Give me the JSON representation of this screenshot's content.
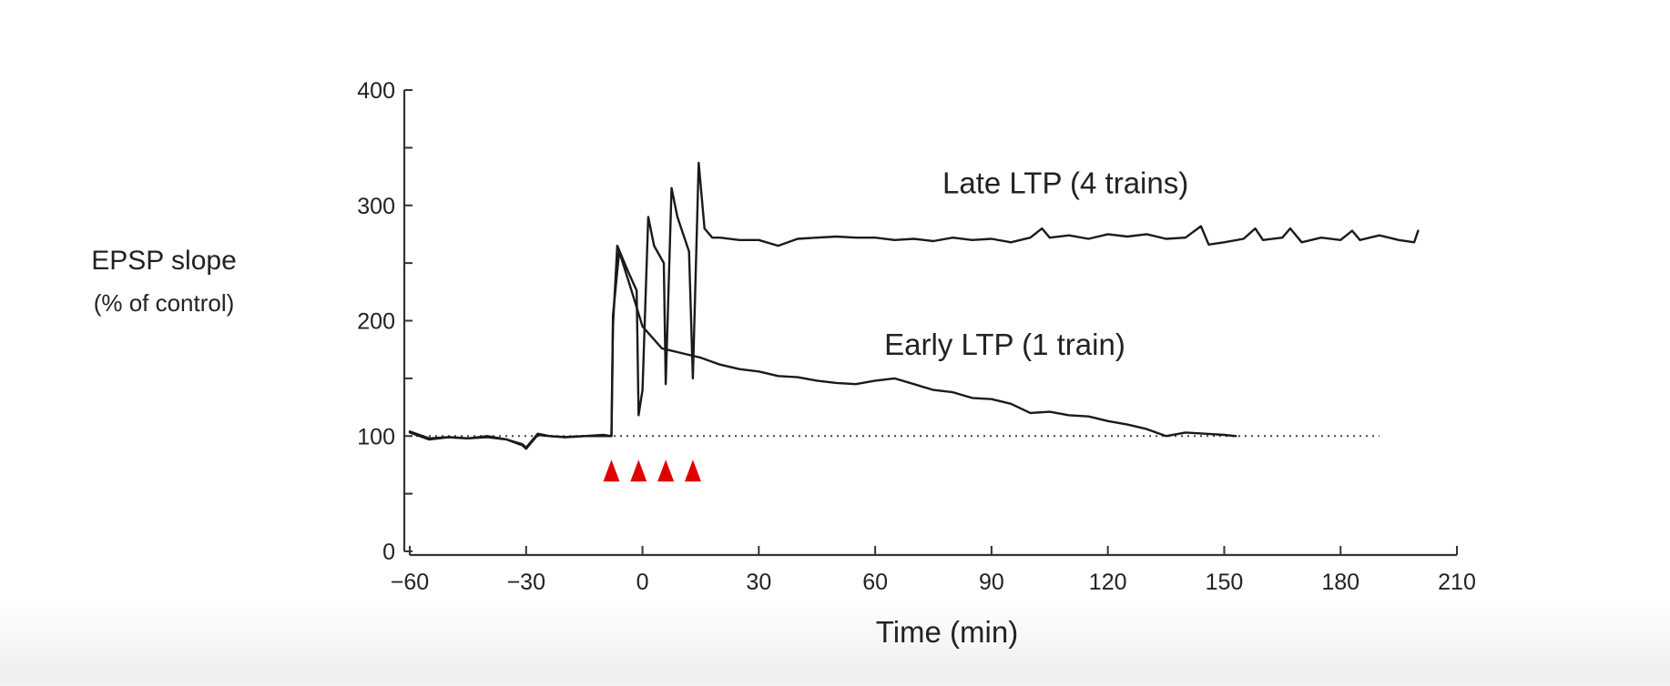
{
  "chart_data": {
    "type": "line",
    "title": "",
    "xlabel": "Time (min)",
    "ylabel": "EPSP slope",
    "ylabel_sub": "(% of control)",
    "xlim": [
      -60,
      210
    ],
    "ylim": [
      0,
      400
    ],
    "x_ticks": [
      -60,
      -30,
      0,
      30,
      60,
      90,
      120,
      150,
      180,
      210
    ],
    "x_tick_labels": [
      "−60",
      "−30",
      "0",
      "30",
      "60",
      "90",
      "120",
      "150",
      "180",
      "210"
    ],
    "y_ticks": [
      0,
      50,
      100,
      150,
      200,
      250,
      300,
      350,
      400
    ],
    "y_tick_labels": [
      "0",
      "",
      "100",
      "",
      "200",
      "",
      "300",
      "",
      "400"
    ],
    "baseline": {
      "y": 100,
      "x_range": [
        -60,
        190
      ],
      "style": "dotted"
    },
    "stimulus_markers": {
      "x": [
        -8,
        -1,
        6,
        13
      ],
      "color": "#e00000"
    },
    "grid": false,
    "legend": "none",
    "series": [
      {
        "name": "Late LTP (4 trains)",
        "color": "#1a1a1a",
        "x": [
          -60,
          -55,
          -50,
          -45,
          -40,
          -35,
          -31,
          -30,
          -27,
          -24,
          -20,
          -15,
          -10,
          -8,
          -7.6,
          -6.5,
          -4,
          -1.5,
          -1,
          0,
          1.5,
          3,
          5.5,
          6,
          7.5,
          9,
          12,
          13,
          14.5,
          16,
          18,
          20,
          25,
          30,
          35,
          40,
          45,
          50,
          55,
          60,
          65,
          70,
          75,
          80,
          85,
          90,
          95,
          100,
          103,
          105,
          110,
          115,
          120,
          125,
          130,
          135,
          140,
          144,
          146,
          150,
          155,
          158,
          160,
          165,
          167,
          170,
          175,
          180,
          183,
          185,
          190,
          195,
          199,
          200
        ],
        "y": [
          103,
          97,
          99,
          98,
          100,
          97,
          92,
          89,
          101,
          100,
          99,
          100,
          101,
          100,
          196,
          265,
          245,
          226,
          118,
          140,
          290,
          265,
          250,
          145,
          315,
          290,
          260,
          150,
          337,
          280,
          272,
          272,
          270,
          270,
          265,
          271,
          272,
          273,
          272,
          272,
          270,
          271,
          269,
          272,
          270,
          271,
          268,
          272,
          280,
          272,
          274,
          271,
          275,
          273,
          275,
          271,
          272,
          282,
          266,
          268,
          271,
          280,
          270,
          272,
          280,
          268,
          272,
          270,
          278,
          270,
          274,
          270,
          268,
          278
        ]
      },
      {
        "name": "Early LTP (1 train)",
        "color": "#1a1a1a",
        "x": [
          -60,
          -55,
          -50,
          -45,
          -40,
          -35,
          -31,
          -30,
          -27,
          -24,
          -20,
          -15,
          -10,
          -8,
          -7.6,
          -6,
          -3,
          0,
          5,
          10,
          15,
          20,
          25,
          30,
          35,
          40,
          45,
          50,
          55,
          60,
          65,
          70,
          75,
          80,
          85,
          90,
          95,
          100,
          105,
          110,
          115,
          120,
          125,
          130,
          135,
          140,
          145,
          150,
          153
        ],
        "y": [
          104,
          98,
          99,
          98,
          99,
          97,
          93,
          90,
          102,
          100,
          99,
          100,
          100,
          100,
          205,
          260,
          228,
          195,
          176,
          172,
          168,
          162,
          158,
          156,
          152,
          151,
          148,
          146,
          145,
          148,
          150,
          145,
          140,
          138,
          133,
          132,
          128,
          120,
          121,
          118,
          117,
          113,
          110,
          106,
          100,
          103,
          102,
          101,
          100
        ]
      }
    ],
    "annotations": [
      {
        "text": "Late LTP (4 trains)",
        "x": 75,
        "y": 320,
        "anchor": "start"
      },
      {
        "text": "Early LTP (1 train)",
        "x": 60,
        "y": 180,
        "anchor": "start"
      }
    ]
  }
}
